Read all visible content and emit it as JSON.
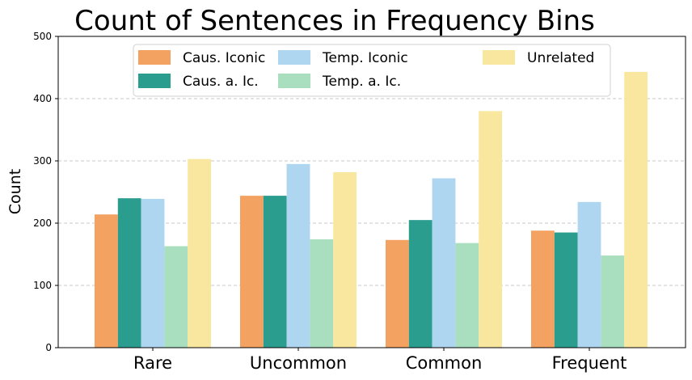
{
  "chart_data": {
    "type": "bar",
    "title": "Count of Sentences in Frequency Bins",
    "xlabel": "",
    "ylabel": "Count",
    "ylim": [
      0,
      500
    ],
    "yticks": [
      0,
      100,
      200,
      300,
      400,
      500
    ],
    "grid": "y-dashed",
    "legend_position": "top-center",
    "categories": [
      "Rare",
      "Uncommon",
      "Common",
      "Frequent"
    ],
    "series": [
      {
        "name": "Caus. Iconic",
        "color": "#F4A261",
        "values": [
          214,
          244,
          173,
          188
        ]
      },
      {
        "name": "Caus. a. Ic.",
        "color": "#2A9D8F",
        "values": [
          240,
          244,
          205,
          185
        ]
      },
      {
        "name": "Temp. Iconic",
        "color": "#AED6F1",
        "values": [
          239,
          295,
          272,
          234
        ]
      },
      {
        "name": "Temp. a. Ic.",
        "color": "#A9DFBF",
        "values": [
          163,
          174,
          168,
          148
        ]
      },
      {
        "name": "Unrelated",
        "color": "#F9E79F",
        "values": [
          303,
          282,
          380,
          443
        ]
      }
    ]
  }
}
